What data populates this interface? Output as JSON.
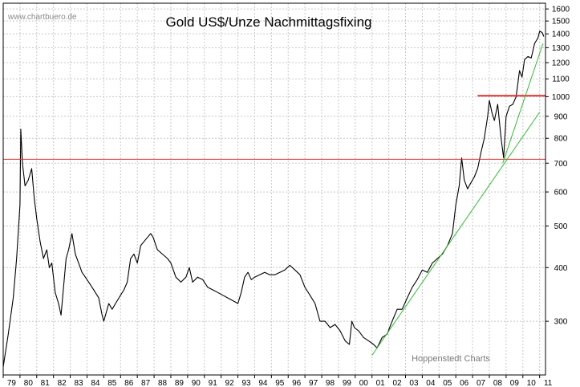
{
  "site_label": "www.chartbuero.de",
  "credit_label": "Hoppenstedt Charts",
  "chart_data": {
    "type": "line",
    "title": "Gold US$/Unze Nachmittagsfixing",
    "xlabel": "",
    "ylabel": "",
    "y_scale": "log",
    "ylim": [
      225,
      1650
    ],
    "xlim": [
      1979.0,
      2011.35
    ],
    "yticks": [
      300,
      400,
      500,
      600,
      700,
      800,
      900,
      1000,
      1100,
      1200,
      1300,
      1400,
      1500,
      1600
    ],
    "xtick_labels": [
      "79",
      "80",
      "81",
      "82",
      "83",
      "84",
      "85",
      "86",
      "87",
      "88",
      "89",
      "90",
      "91",
      "92",
      "93",
      "94",
      "95",
      "96",
      "97",
      "98",
      "99",
      "00",
      "01",
      "02",
      "03",
      "04",
      "05",
      "06",
      "07",
      "08",
      "09",
      "10",
      "11"
    ],
    "grid": true,
    "colors": {
      "price": "#000000",
      "horizontal_lines": "#e03030",
      "trendlines": "#33bb33",
      "grid": "#c8c8c8"
    },
    "series": [
      {
        "x": [
          1979.0,
          1979.3,
          1979.6,
          1979.8,
          1980.0,
          1980.05,
          1980.15,
          1980.3,
          1980.5,
          1980.7,
          1980.85,
          1981.0,
          1981.2,
          1981.4,
          1981.6,
          1981.75,
          1981.9,
          1982.1,
          1982.3,
          1982.45,
          1982.6,
          1982.75,
          1982.9,
          1983.1,
          1983.3,
          1983.5,
          1983.7,
          1983.9,
          1984.1,
          1984.3,
          1984.5,
          1984.7,
          1984.9,
          1985.0,
          1985.1,
          1985.3,
          1985.5,
          1985.7,
          1985.9,
          1986.0,
          1986.2,
          1986.4,
          1986.6,
          1986.8,
          1987.0,
          1987.2,
          1987.4,
          1987.6,
          1987.8,
          1987.95,
          1988.2,
          1988.5,
          1988.8,
          1989.0,
          1989.3,
          1989.6,
          1989.9,
          1990.1,
          1990.3,
          1990.6,
          1990.9,
          1991.2,
          1991.5,
          1991.8,
          1992.1,
          1992.4,
          1992.7,
          1993.0,
          1993.2,
          1993.4,
          1993.6,
          1993.8,
          1994.0,
          1994.3,
          1994.6,
          1994.9,
          1995.2,
          1995.5,
          1995.8,
          1996.1,
          1996.4,
          1996.7,
          1997.0,
          1997.3,
          1997.6,
          1997.9,
          1998.2,
          1998.5,
          1998.8,
          1999.1,
          1999.4,
          1999.65,
          1999.8,
          1999.95,
          2000.2,
          2000.5,
          2000.8,
          2001.1,
          2001.3,
          2001.6,
          2001.9,
          2002.2,
          2002.5,
          2002.8,
          2003.1,
          2003.4,
          2003.7,
          2004.0,
          2004.3,
          2004.6,
          2004.9,
          2005.2,
          2005.5,
          2005.8,
          2006.0,
          2006.2,
          2006.35,
          2006.5,
          2006.7,
          2006.9,
          2007.1,
          2007.3,
          2007.5,
          2007.7,
          2007.9,
          2008.0,
          2008.15,
          2008.3,
          2008.5,
          2008.7,
          2008.85,
          2009.0,
          2009.2,
          2009.4,
          2009.6,
          2009.8,
          2009.95,
          2010.1,
          2010.3,
          2010.5,
          2010.7,
          2010.9,
          2011.0,
          2011.15,
          2011.25
        ],
        "values": [
          235,
          280,
          340,
          420,
          560,
          840,
          700,
          620,
          640,
          680,
          580,
          520,
          460,
          420,
          440,
          400,
          410,
          350,
          330,
          310,
          360,
          420,
          440,
          480,
          430,
          410,
          390,
          380,
          370,
          360,
          350,
          340,
          310,
          300,
          310,
          330,
          320,
          330,
          340,
          345,
          355,
          370,
          420,
          430,
          410,
          450,
          460,
          470,
          480,
          470,
          440,
          430,
          420,
          410,
          380,
          370,
          380,
          400,
          370,
          380,
          375,
          360,
          355,
          350,
          345,
          340,
          335,
          330,
          350,
          380,
          390,
          375,
          380,
          385,
          390,
          385,
          385,
          390,
          395,
          405,
          395,
          385,
          360,
          345,
          330,
          300,
          300,
          290,
          295,
          285,
          270,
          265,
          300,
          290,
          285,
          275,
          270,
          265,
          260,
          275,
          280,
          300,
          320,
          320,
          340,
          360,
          375,
          395,
          390,
          410,
          420,
          430,
          450,
          480,
          560,
          620,
          720,
          640,
          610,
          630,
          650,
          680,
          740,
          800,
          900,
          980,
          920,
          880,
          960,
          800,
          720,
          900,
          950,
          960,
          1000,
          1150,
          1110,
          1220,
          1240,
          1230,
          1330,
          1370,
          1420,
          1410,
          1380
        ]
      }
    ],
    "horizontal_lines": [
      {
        "y": 715,
        "x_from": 1979.0,
        "x_to": 2011.35
      },
      {
        "y": 1005,
        "x_from": 2007.3,
        "x_to": 2011.35
      }
    ],
    "trendlines": [
      {
        "x1": 2001.0,
        "y1": 250,
        "x2": 2011.0,
        "y2": 920
      },
      {
        "x1": 2008.8,
        "y1": 700,
        "x2": 2011.2,
        "y2": 1330
      }
    ]
  }
}
